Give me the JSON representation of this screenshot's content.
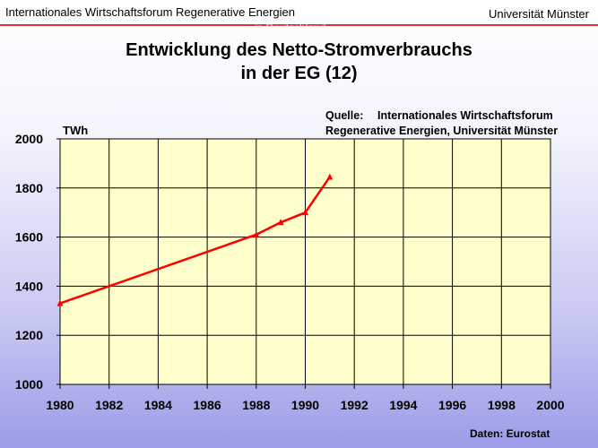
{
  "header": {
    "left": "Internationales Wirtschaftsforum Regenerative Energien",
    "right": "Universität Münster",
    "watermark": "in Deutschland"
  },
  "title_line1": "Entwicklung des Netto-Stromverbrauchs",
  "title_line2": "in der EG (12)",
  "source": {
    "label": "Quelle:",
    "line1": "Internationales Wirtschaftsforum",
    "line2": "Regenerative Energien, Universität Münster"
  },
  "footer": "Daten: Eurostat",
  "colors": {
    "plot_bg": "#ffffcc",
    "line": "#ff0000",
    "header_rule": "#e23232"
  },
  "chart_data": {
    "type": "line",
    "title": "Entwicklung des Netto-Stromverbrauchs in der EG (12)",
    "ylabel": "TWh",
    "xlabel": "",
    "xlim": [
      1980,
      2000
    ],
    "ylim": [
      1000,
      2000
    ],
    "x_ticks": [
      1980,
      1982,
      1984,
      1986,
      1988,
      1990,
      1992,
      1994,
      1996,
      1998,
      2000
    ],
    "y_ticks": [
      1000,
      1200,
      1400,
      1600,
      1800,
      2000
    ],
    "grid": true,
    "series": [
      {
        "x": [
          1980,
          1988,
          1989,
          1990,
          1991
        ],
        "y": [
          1330,
          1610,
          1660,
          1700,
          1845
        ]
      }
    ]
  }
}
